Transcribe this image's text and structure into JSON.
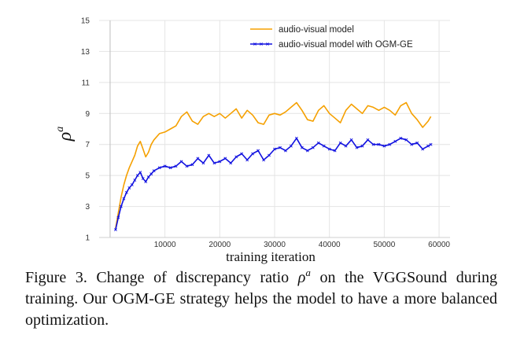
{
  "chart_data": {
    "type": "line",
    "title": "",
    "xlabel": "training iteration",
    "ylabel": "ρ",
    "ylabel_superscript": "a",
    "xlim": [
      -2000,
      62000
    ],
    "ylim": [
      1,
      15
    ],
    "xticks": [
      10000,
      20000,
      30000,
      40000,
      50000,
      60000
    ],
    "xtick_labels": [
      "10000",
      "20000",
      "30000",
      "40000",
      "50000",
      "60000"
    ],
    "yticks": [
      1,
      3,
      5,
      7,
      9,
      11,
      13,
      15
    ],
    "ytick_labels": [
      "1",
      "3",
      "5",
      "7",
      "9",
      "11",
      "13",
      "15"
    ],
    "grid": true,
    "legend_position": "top-right",
    "series": [
      {
        "name": "audio-visual model",
        "color": "#f5a000",
        "marker": "none",
        "x": [
          1000,
          1500,
          2000,
          2500,
          3000,
          3500,
          4000,
          4500,
          5000,
          5500,
          6000,
          6500,
          7000,
          7500,
          8000,
          9000,
          10000,
          11000,
          12000,
          13000,
          14000,
          15000,
          16000,
          17000,
          18000,
          19000,
          20000,
          21000,
          22000,
          23000,
          24000,
          25000,
          26000,
          27000,
          28000,
          29000,
          30000,
          31000,
          32000,
          33000,
          34000,
          35000,
          36000,
          37000,
          38000,
          39000,
          40000,
          41000,
          42000,
          43000,
          44000,
          45000,
          46000,
          47000,
          48000,
          49000,
          50000,
          51000,
          52000,
          53000,
          54000,
          55000,
          56000,
          57000,
          58000,
          58500
        ],
        "y": [
          1.6,
          2.6,
          3.6,
          4.4,
          5.0,
          5.5,
          5.9,
          6.3,
          6.9,
          7.2,
          6.7,
          6.2,
          6.5,
          7.0,
          7.3,
          7.7,
          7.8,
          8.0,
          8.2,
          8.8,
          9.1,
          8.5,
          8.3,
          8.8,
          9.0,
          8.8,
          9.0,
          8.7,
          9.0,
          9.3,
          8.7,
          9.2,
          8.9,
          8.4,
          8.3,
          8.9,
          9.0,
          8.9,
          9.1,
          9.4,
          9.7,
          9.2,
          8.6,
          8.5,
          9.2,
          9.5,
          9.0,
          8.7,
          8.4,
          9.2,
          9.6,
          9.3,
          9.0,
          9.5,
          9.4,
          9.2,
          9.4,
          9.2,
          8.9,
          9.5,
          9.7,
          9.0,
          8.6,
          8.1,
          8.5,
          8.8
        ]
      },
      {
        "name": "audio-visual model with OGM-GE",
        "color": "#1010e0",
        "marker": "x",
        "x": [
          1000,
          1500,
          2000,
          2500,
          3000,
          3500,
          4000,
          4500,
          5000,
          5500,
          6000,
          6500,
          7000,
          7500,
          8000,
          9000,
          10000,
          11000,
          12000,
          13000,
          14000,
          15000,
          16000,
          17000,
          18000,
          19000,
          20000,
          21000,
          22000,
          23000,
          24000,
          25000,
          26000,
          27000,
          28000,
          29000,
          30000,
          31000,
          32000,
          33000,
          34000,
          35000,
          36000,
          37000,
          38000,
          39000,
          40000,
          41000,
          42000,
          43000,
          44000,
          45000,
          46000,
          47000,
          48000,
          49000,
          50000,
          51000,
          52000,
          53000,
          54000,
          55000,
          56000,
          57000,
          58000,
          58500
        ],
        "y": [
          1.5,
          2.3,
          3.0,
          3.5,
          3.9,
          4.2,
          4.4,
          4.7,
          5.0,
          5.2,
          4.8,
          4.6,
          4.9,
          5.1,
          5.3,
          5.5,
          5.6,
          5.5,
          5.6,
          5.9,
          5.6,
          5.7,
          6.1,
          5.8,
          6.3,
          5.8,
          5.9,
          6.1,
          5.8,
          6.2,
          6.4,
          6.0,
          6.4,
          6.6,
          6.0,
          6.3,
          6.7,
          6.8,
          6.6,
          6.9,
          7.4,
          6.8,
          6.6,
          6.8,
          7.1,
          6.9,
          6.7,
          6.6,
          7.1,
          6.9,
          7.3,
          6.8,
          6.9,
          7.3,
          7.0,
          7.0,
          6.9,
          7.0,
          7.2,
          7.4,
          7.3,
          7.0,
          7.1,
          6.7,
          6.9,
          7.0
        ]
      }
    ]
  },
  "caption": {
    "prefix": "Figure 3. Change of discrepancy ratio ",
    "rho": "ρ",
    "rho_sup": "a",
    "suffix": " on the VGGSound during training. Our OGM-GE strategy helps the model to have a more balanced optimization."
  }
}
